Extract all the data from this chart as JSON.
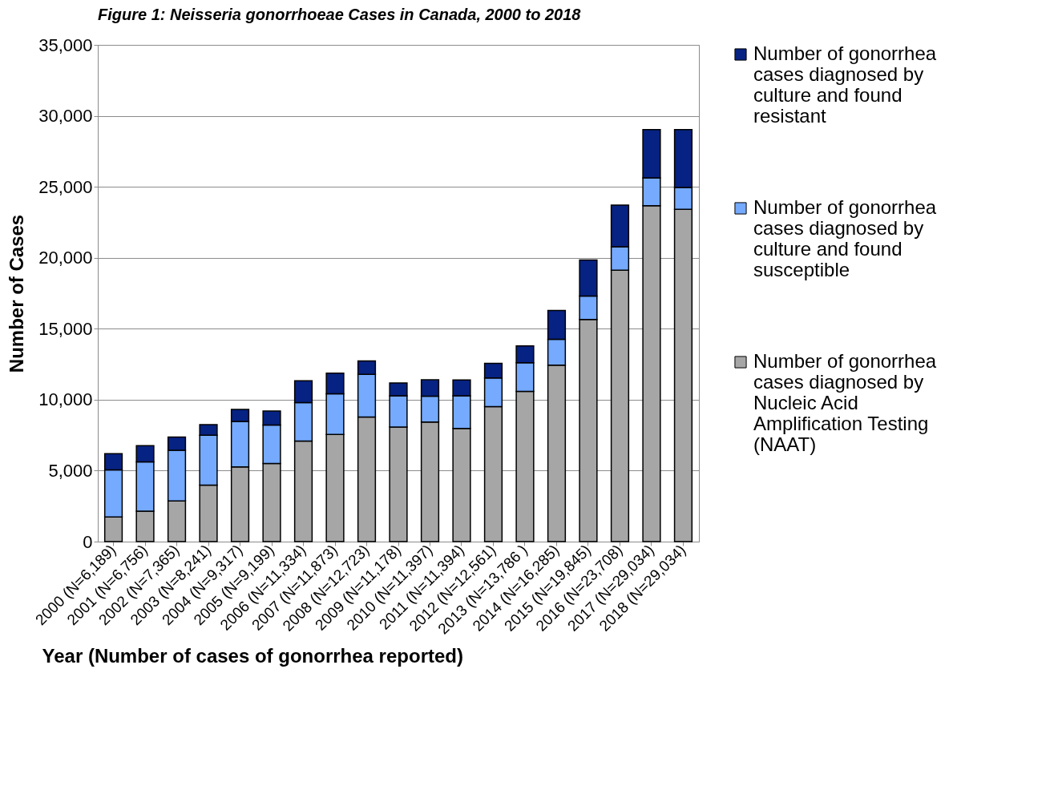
{
  "chart_data": {
    "type": "bar",
    "stacked": true,
    "title": "Figure 1: Neisseria gonorrhoeae Cases in Canada, 2000 to 2018",
    "xlabel": "Year (Number of cases of gonorrhea reported)",
    "ylabel": "Number of Cases",
    "categories": [
      "2000 (N=6,189)",
      "2001 (N=6,756)",
      "2002 (N=7,365)",
      "2003 (N=8,241)",
      "2004 (N=9,317)",
      "2005 (N=9,199)",
      "2006 (N=11,334)",
      "2007 (N=11,873)",
      "2008 (N=12,723)",
      "2009 (N=11,178)",
      "2010 (N=11,397)",
      "2011 (N=11,394)",
      "2012 (N=12,561)",
      "2013 (N=13,786 )",
      "2014 (N=16,285)",
      "2015 (N=19,845)",
      "2016 (N=23,708)",
      "2017 (N=29,034)",
      "2018 (N=29,034)"
    ],
    "series": [
      {
        "name": "Number of gonorrhea cases diagnosed by Nucleic Acid Amplification Testing (NAAT)",
        "color": "#a6a6a6",
        "values": [
          1730,
          2140,
          2860,
          3980,
          5260,
          5510,
          7090,
          7550,
          8780,
          8070,
          8430,
          7980,
          9510,
          10580,
          12430,
          15650,
          19130,
          23670,
          23420
        ]
      },
      {
        "name": "Number of gonorrhea cases diagnosed by culture and found susceptible",
        "color": "#75aaff",
        "values": [
          3320,
          3470,
          3570,
          3520,
          3210,
          2700,
          2710,
          2860,
          3010,
          2200,
          1810,
          2290,
          2020,
          2020,
          1820,
          1650,
          1640,
          1960,
          1530
        ]
      },
      {
        "name": "Number of gonorrhea cases diagnosed by culture and found resistant",
        "color": "#062282",
        "values": [
          1139,
          1146,
          935,
          741,
          847,
          989,
          1534,
          1463,
          933,
          908,
          1157,
          1124,
          1031,
          1186,
          2035,
          2545,
          2938,
          3404,
          4084
        ]
      }
    ],
    "ylim": [
      0,
      35000
    ],
    "yticks": [
      {
        "value": 0,
        "label": "0"
      },
      {
        "value": 5000,
        "label": "5,000"
      },
      {
        "value": 10000,
        "label": "10,000"
      },
      {
        "value": 15000,
        "label": "15,000"
      },
      {
        "value": 20000,
        "label": "20,000"
      },
      {
        "value": 25000,
        "label": "25,000"
      },
      {
        "value": 30000,
        "label": "30,000"
      },
      {
        "value": 35000,
        "label": "35,000"
      }
    ],
    "grid": "y",
    "legend": "right"
  }
}
